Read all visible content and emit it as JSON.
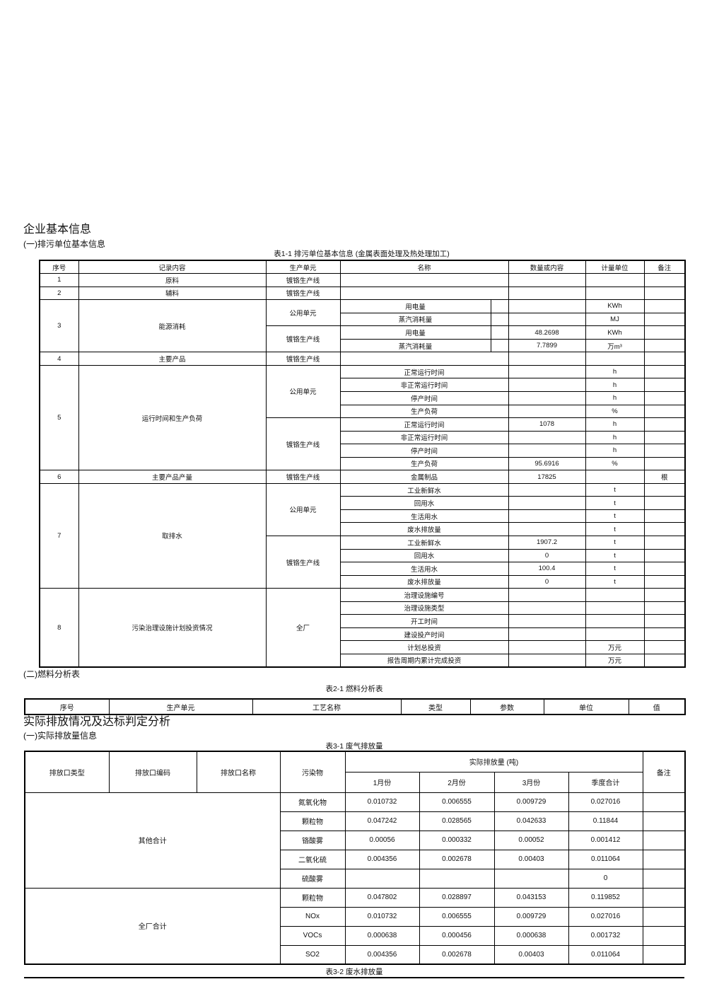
{
  "headings": {
    "company_info": "企业基本信息",
    "sub_basic": "(一)排污单位基本信息",
    "sub_fuel": "(二)燃料分析表",
    "emission_analysis": "实际排放情况及达标判定分析",
    "sub_emission": "(一)实际排放量信息"
  },
  "captions": {
    "t1": "表1-1 排污单位基本信息 (金属表面处理及热处理加工)",
    "t2": "表2-1 燃料分析表",
    "t3": "表3-1 废气排放量",
    "t4": "表3-2 废水排放量"
  },
  "tables": {
    "t1": {
      "rows": [
        {
          "h": 1,
          "c": [
            "序号",
            "记录内容",
            "生产单元",
            {
              "t": "名称",
              "cs": 2
            },
            "数量或内容",
            "计量单位",
            "备注"
          ]
        },
        {
          "c": [
            "1",
            "原料",
            "镀铬生产线",
            {
              "t": "",
              "cs": 2
            },
            "",
            "",
            ""
          ]
        },
        {
          "c": [
            "2",
            "辅料",
            "镀铬生产线",
            {
              "t": "",
              "cs": 2
            },
            "",
            "",
            ""
          ]
        },
        {
          "c": [
            {
              "t": "3",
              "rs": 4
            },
            {
              "t": "能源消耗",
              "rs": 4
            },
            {
              "t": "公用单元",
              "rs": 2
            },
            "用电量",
            "",
            "",
            "KWh",
            ""
          ]
        },
        {
          "c": [
            "蒸汽消耗量",
            "",
            "",
            "MJ",
            ""
          ]
        },
        {
          "c": [
            {
              "t": "镀铬生产线",
              "rs": 2
            },
            "用电量",
            "",
            "48.2698",
            "KWh",
            ""
          ]
        },
        {
          "c": [
            "蒸汽消耗量",
            "",
            "7.7899",
            "万m³",
            ""
          ]
        },
        {
          "c": [
            "4",
            "主要产品",
            "镀铬生产线",
            {
              "t": "",
              "cs": 2
            },
            "",
            "",
            ""
          ]
        },
        {
          "c": [
            {
              "t": "5",
              "rs": 8
            },
            {
              "t": "运行时间和生产负荷",
              "rs": 8
            },
            {
              "t": "公用单元",
              "rs": 4
            },
            {
              "t": "正常运行时间",
              "cs": 2
            },
            "",
            "h",
            ""
          ]
        },
        {
          "c": [
            {
              "t": "非正常运行时间",
              "cs": 2
            },
            "",
            "h",
            ""
          ]
        },
        {
          "c": [
            {
              "t": "停产时间",
              "cs": 2
            },
            "",
            "h",
            ""
          ]
        },
        {
          "c": [
            {
              "t": "生产负荷",
              "cs": 2
            },
            "",
            "%",
            ""
          ]
        },
        {
          "c": [
            {
              "t": "镀铬生产线",
              "rs": 4
            },
            {
              "t": "正常运行时间",
              "cs": 2
            },
            "1078",
            "h",
            ""
          ]
        },
        {
          "c": [
            {
              "t": "非正常运行时间",
              "cs": 2
            },
            "",
            "h",
            ""
          ]
        },
        {
          "c": [
            {
              "t": "停产时间",
              "cs": 2
            },
            "",
            "h",
            ""
          ]
        },
        {
          "c": [
            {
              "t": "生产负荷",
              "cs": 2
            },
            "95.6916",
            "%",
            ""
          ]
        },
        {
          "c": [
            "6",
            "主要产品产量",
            "镀铬生产线",
            {
              "t": "金属制品",
              "cs": 2
            },
            "17825",
            "",
            "根"
          ]
        },
        {
          "c": [
            {
              "t": "7",
              "rs": 8
            },
            {
              "t": "取排水",
              "rs": 8
            },
            {
              "t": "公用单元",
              "rs": 4
            },
            {
              "t": "工业新鲜水",
              "cs": 2
            },
            "",
            "t",
            ""
          ]
        },
        {
          "c": [
            {
              "t": "回用水",
              "cs": 2
            },
            "",
            "t",
            ""
          ]
        },
        {
          "c": [
            {
              "t": "生活用水",
              "cs": 2
            },
            "",
            "t",
            ""
          ]
        },
        {
          "c": [
            {
              "t": "废水排放量",
              "cs": 2
            },
            "",
            "t",
            ""
          ]
        },
        {
          "c": [
            {
              "t": "镀铬生产线",
              "rs": 4
            },
            {
              "t": "工业新鲜水",
              "cs": 2
            },
            "1907.2",
            "t",
            ""
          ]
        },
        {
          "c": [
            {
              "t": "回用水",
              "cs": 2
            },
            "0",
            "t",
            ""
          ]
        },
        {
          "c": [
            {
              "t": "生活用水",
              "cs": 2
            },
            "100.4",
            "t",
            ""
          ]
        },
        {
          "c": [
            {
              "t": "废水排放量",
              "cs": 2
            },
            "0",
            "t",
            ""
          ]
        },
        {
          "c": [
            {
              "t": "8",
              "rs": 6
            },
            {
              "t": "污染治理设施计划投资情况",
              "rs": 6
            },
            {
              "t": "全厂",
              "rs": 6
            },
            {
              "t": "治理设施编号",
              "cs": 2
            },
            "",
            "",
            ""
          ]
        },
        {
          "c": [
            {
              "t": "治理设施类型",
              "cs": 2
            },
            "",
            "",
            ""
          ]
        },
        {
          "c": [
            {
              "t": "开工时间",
              "cs": 2
            },
            "",
            "",
            ""
          ]
        },
        {
          "c": [
            {
              "t": "建设投产时间",
              "cs": 2
            },
            "",
            "",
            ""
          ]
        },
        {
          "c": [
            {
              "t": "计划总投资",
              "cs": 2
            },
            "",
            "万元",
            ""
          ]
        },
        {
          "c": [
            {
              "t": "报告周期内累计完成投资",
              "cs": 2
            },
            "",
            "万元",
            ""
          ]
        }
      ]
    },
    "t2": {
      "rows": [
        {
          "h": 1,
          "c": [
            "序号",
            "生产单元",
            "工艺名称",
            "类型",
            "参数",
            "单位",
            "值"
          ]
        }
      ]
    },
    "t3": {
      "rows": [
        {
          "h": 1,
          "c": [
            {
              "t": "排放口类型",
              "rs": 2
            },
            {
              "t": "排放口编码",
              "rs": 2
            },
            {
              "t": "排放口名称",
              "rs": 2
            },
            {
              "t": "污染物",
              "rs": 2
            },
            {
              "t": "实际排放量 (吨)",
              "cs": 4
            },
            {
              "t": "备注",
              "rs": 2
            }
          ]
        },
        {
          "h": 1,
          "c": [
            "1月份",
            "2月份",
            "3月份",
            "季度合计"
          ]
        },
        {
          "c": [
            {
              "t": "其他合计",
              "cs": 3,
              "rs": 5
            },
            "氮氧化物",
            "0.010732",
            "0.006555",
            "0.009729",
            "0.027016",
            ""
          ]
        },
        {
          "c": [
            "颗粒物",
            "0.047242",
            "0.028565",
            "0.042633",
            "0.11844",
            ""
          ]
        },
        {
          "c": [
            "铬酸雾",
            "0.00056",
            "0.000332",
            "0.00052",
            "0.001412",
            ""
          ]
        },
        {
          "c": [
            "二氧化硫",
            "0.004356",
            "0.002678",
            "0.00403",
            "0.011064",
            ""
          ]
        },
        {
          "c": [
            "硫酸雾",
            "",
            "",
            "",
            "0",
            ""
          ]
        },
        {
          "c": [
            {
              "t": "全厂合计",
              "cs": 3,
              "rs": 4
            },
            "颗粒物",
            "0.047802",
            "0.028897",
            "0.043153",
            "0.119852",
            ""
          ]
        },
        {
          "c": [
            "NOx",
            "0.010732",
            "0.006555",
            "0.009729",
            "0.027016",
            ""
          ]
        },
        {
          "c": [
            "VOCs",
            "0.000638",
            "0.000456",
            "0.000638",
            "0.001732",
            ""
          ]
        },
        {
          "c": [
            "SO2",
            "0.004356",
            "0.002678",
            "0.00403",
            "0.011064",
            ""
          ]
        }
      ]
    }
  }
}
